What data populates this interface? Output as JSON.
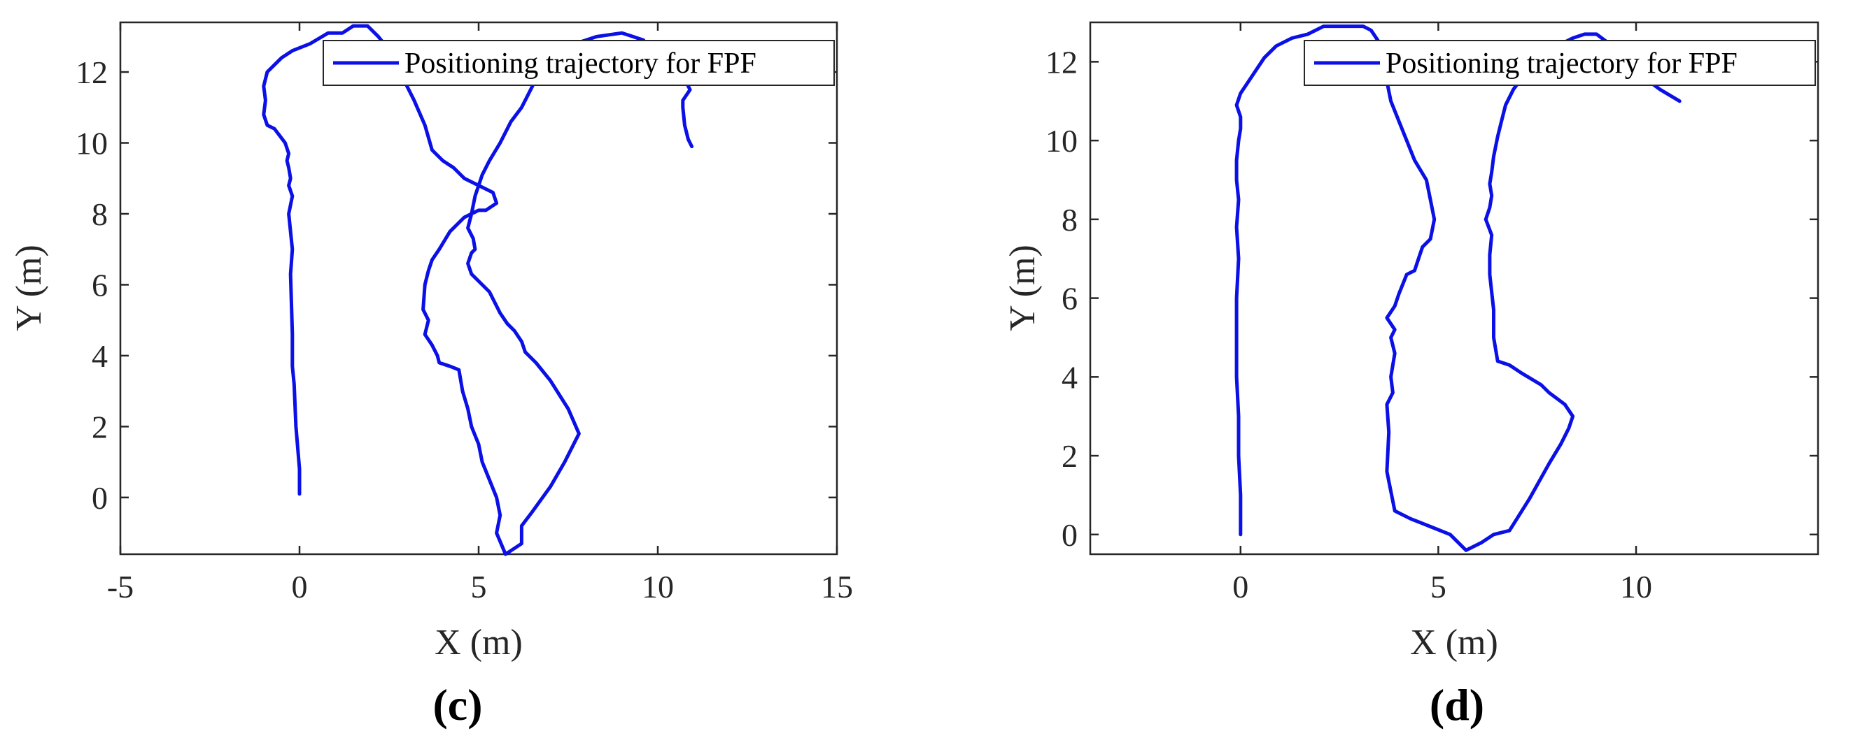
{
  "chart_data": [
    {
      "type": "line",
      "caption": "(c)",
      "xlabel": "X (m)",
      "ylabel": "Y (m)",
      "xlim": [
        -5,
        15
      ],
      "ylim": [
        -1.6,
        13.4
      ],
      "xticks": [
        -5,
        0,
        5,
        10,
        15
      ],
      "yticks": [
        0,
        2,
        4,
        6,
        8,
        10,
        12
      ],
      "legend_position": "top-right",
      "grid": false,
      "series": [
        {
          "name": "Positioning trajectory for FPF",
          "color": "#0a10e6",
          "x": [
            0.0,
            0.0,
            -0.1,
            -0.15,
            -0.2,
            -0.2,
            -0.25,
            -0.2,
            -0.3,
            -0.2,
            -0.3,
            -0.25,
            -0.3,
            -0.35,
            -0.3,
            -0.4,
            -0.7,
            -0.9,
            -1.0,
            -0.95,
            -1.0,
            -0.9,
            -0.5,
            -0.2,
            0.3,
            0.8,
            1.2,
            1.5,
            1.9,
            2.2,
            2.6,
            2.9,
            3.2,
            3.5,
            3.7,
            4.0,
            4.3,
            4.6,
            5.0,
            5.4,
            5.5,
            5.2,
            5.0,
            4.6,
            4.2,
            3.9,
            3.7,
            3.6,
            3.5,
            3.45,
            3.6,
            3.5,
            3.7,
            3.85,
            3.9,
            4.2,
            4.45,
            4.55,
            4.7,
            4.8,
            5.0,
            5.1,
            5.3,
            5.5,
            5.6,
            5.5,
            5.75,
            5.9,
            6.2,
            6.2,
            6.5,
            7.0,
            7.4,
            7.8,
            7.5,
            7.0,
            6.6,
            6.3,
            6.2,
            6.0,
            5.8,
            5.6,
            5.4,
            5.3,
            5.1,
            4.8,
            4.7,
            4.8,
            4.9,
            4.85,
            4.7,
            4.8,
            4.9,
            5.0,
            5.1,
            5.3,
            5.6,
            5.9,
            6.2,
            6.4,
            6.6,
            7.0,
            7.3,
            7.7,
            8.3,
            9.0,
            9.3,
            9.6,
            9.9,
            10.3,
            10.6,
            10.8,
            10.9,
            10.7,
            10.7,
            10.75,
            10.85,
            10.95
          ],
          "y": [
            0.1,
            0.8,
            2.0,
            3.2,
            3.7,
            4.6,
            6.3,
            7.0,
            8.0,
            8.5,
            8.8,
            9.0,
            9.3,
            9.5,
            9.7,
            10.0,
            10.4,
            10.5,
            10.8,
            11.2,
            11.6,
            12.0,
            12.4,
            12.6,
            12.8,
            13.1,
            13.1,
            13.3,
            13.3,
            13.0,
            12.5,
            11.8,
            11.2,
            10.5,
            9.8,
            9.5,
            9.3,
            9.0,
            8.8,
            8.6,
            8.3,
            8.1,
            8.1,
            7.9,
            7.5,
            7.0,
            6.7,
            6.4,
            6.0,
            5.3,
            5.0,
            4.6,
            4.3,
            4.0,
            3.8,
            3.7,
            3.6,
            3.0,
            2.5,
            2.0,
            1.5,
            1.0,
            0.5,
            0.0,
            -0.5,
            -1.0,
            -1.6,
            -1.5,
            -1.3,
            -0.8,
            -0.4,
            0.3,
            1.0,
            1.8,
            2.5,
            3.3,
            3.8,
            4.1,
            4.4,
            4.7,
            4.9,
            5.2,
            5.6,
            5.8,
            6.0,
            6.3,
            6.6,
            6.9,
            7.0,
            7.3,
            7.6,
            8.0,
            8.5,
            8.8,
            9.1,
            9.5,
            10.0,
            10.6,
            11.0,
            11.4,
            11.8,
            12.2,
            12.5,
            12.8,
            13.0,
            13.1,
            13.0,
            12.9,
            12.5,
            12.2,
            11.9,
            11.7,
            11.5,
            11.2,
            11.0,
            10.5,
            10.1,
            9.9
          ]
        }
      ]
    },
    {
      "type": "line",
      "caption": "(d)",
      "xlabel": "X (m)",
      "ylabel": "Y (m)",
      "xlim": [
        -3.8,
        14.6
      ],
      "ylim": [
        -0.5,
        13.0
      ],
      "xticks": [
        0,
        5,
        10
      ],
      "yticks": [
        0,
        2,
        4,
        6,
        8,
        10,
        12
      ],
      "legend_position": "top-right",
      "grid": false,
      "series": [
        {
          "name": "Positioning trajectory for FPF",
          "color": "#0a10e6",
          "x": [
            0.0,
            0.0,
            -0.05,
            -0.05,
            -0.1,
            -0.1,
            -0.1,
            -0.05,
            -0.1,
            -0.05,
            -0.1,
            -0.1,
            -0.05,
            0.0,
            0.0,
            -0.1,
            0.0,
            0.2,
            0.4,
            0.6,
            0.9,
            1.3,
            1.7,
            2.1,
            2.5,
            2.8,
            3.1,
            3.3,
            3.5,
            3.6,
            3.7,
            3.8,
            4.0,
            4.2,
            4.4,
            4.7,
            4.8,
            4.9,
            4.8,
            4.6,
            4.5,
            4.4,
            4.2,
            4.0,
            3.9,
            3.7,
            3.9,
            3.8,
            3.9,
            3.8,
            3.85,
            3.7,
            3.75,
            3.7,
            3.9,
            4.3,
            4.8,
            5.3,
            5.7,
            6.1,
            6.4,
            6.8,
            7.3,
            7.8,
            8.1,
            8.3,
            8.4,
            8.2,
            7.8,
            7.6,
            7.1,
            6.8,
            6.5,
            6.4,
            6.4,
            6.3,
            6.3,
            6.35,
            6.2,
            6.3,
            6.35,
            6.3,
            6.35,
            6.4,
            6.5,
            6.6,
            6.7,
            6.9,
            7.2,
            7.6,
            8.0,
            8.4,
            8.7,
            9.0,
            9.4,
            9.6,
            9.8,
            10.2,
            10.6,
            11.1
          ],
          "y": [
            0.0,
            1.0,
            2.0,
            3.0,
            4.0,
            5.0,
            6.0,
            7.0,
            7.8,
            8.5,
            9.0,
            9.5,
            10.0,
            10.3,
            10.6,
            10.9,
            11.2,
            11.5,
            11.8,
            12.1,
            12.4,
            12.6,
            12.7,
            12.9,
            12.9,
            12.9,
            12.9,
            12.8,
            12.5,
            12.0,
            11.5,
            11.0,
            10.5,
            10.0,
            9.5,
            9.0,
            8.5,
            8.0,
            7.5,
            7.3,
            7.0,
            6.7,
            6.6,
            6.1,
            5.8,
            5.5,
            5.2,
            5.0,
            4.6,
            4.0,
            3.6,
            3.3,
            2.6,
            1.6,
            0.6,
            0.4,
            0.2,
            0.0,
            -0.4,
            -0.2,
            0.0,
            0.1,
            0.9,
            1.8,
            2.3,
            2.7,
            3.0,
            3.3,
            3.6,
            3.8,
            4.1,
            4.3,
            4.4,
            5.0,
            5.7,
            6.6,
            7.1,
            7.6,
            8.0,
            8.3,
            8.6,
            8.9,
            9.2,
            9.6,
            10.1,
            10.5,
            10.9,
            11.3,
            11.7,
            12.1,
            12.4,
            12.6,
            12.7,
            12.7,
            12.4,
            12.1,
            11.9,
            11.6,
            11.3,
            11.0
          ]
        }
      ]
    }
  ]
}
